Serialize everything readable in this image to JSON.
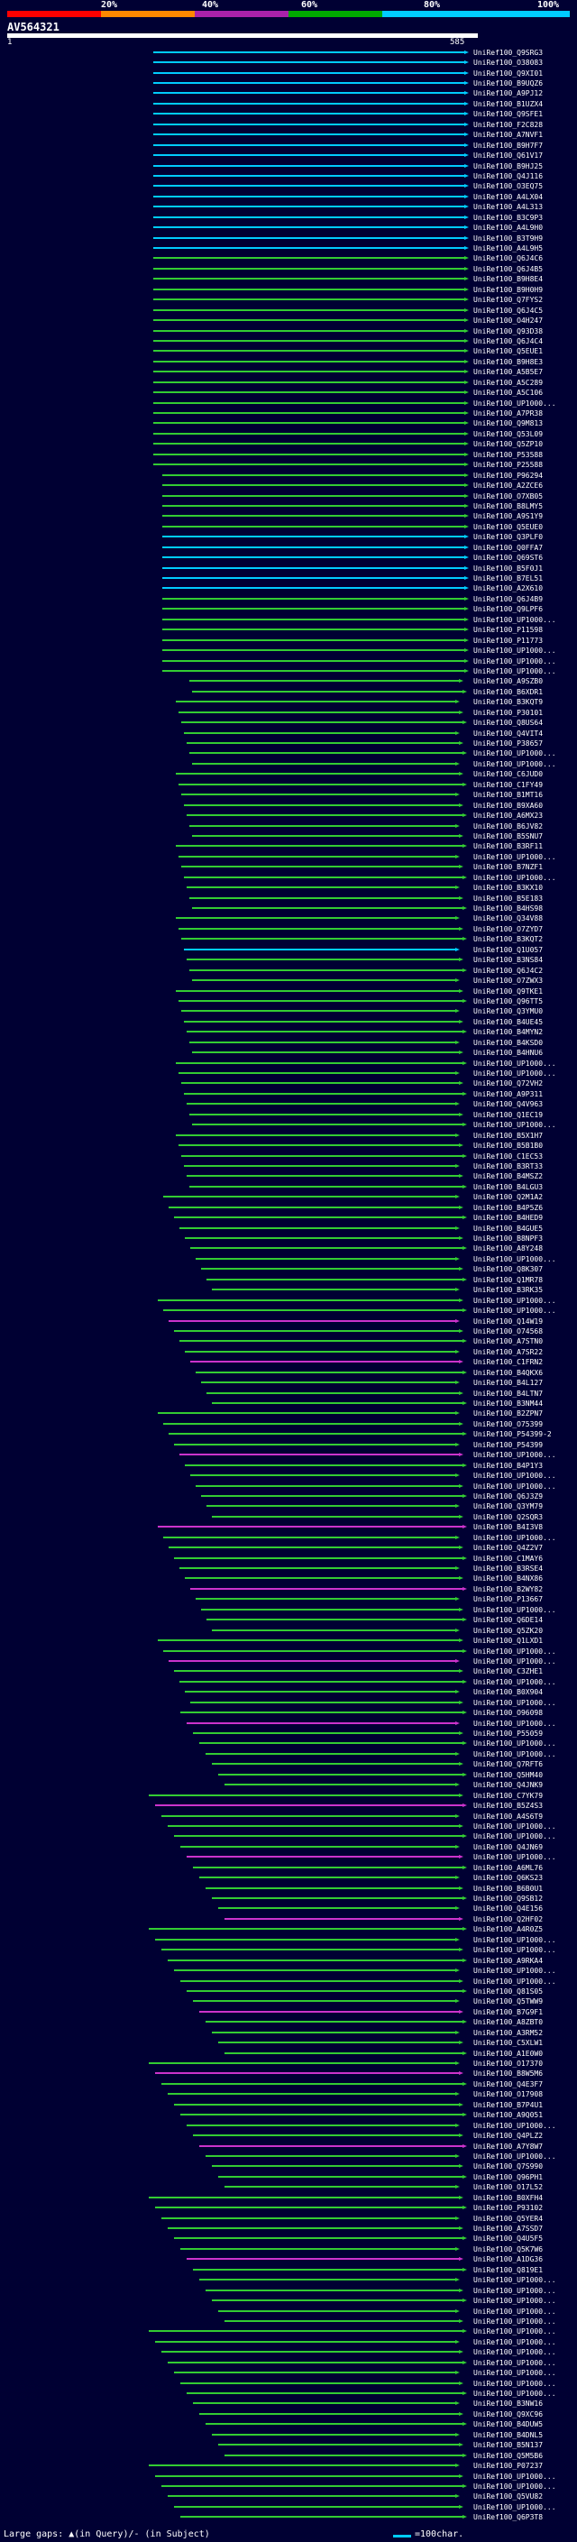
{
  "legend": {
    "labels": [
      "20%",
      "40%",
      "60%",
      "80%",
      "100%"
    ],
    "colors": [
      "#ff0000",
      "#ff8800",
      "#aa22aa",
      "#00aa00",
      "#00ccff"
    ]
  },
  "query": {
    "id": "AV564321",
    "start_label": "1",
    "end_label": "585"
  },
  "hits": [
    "UniRef100_Q9SRG3",
    "UniRef100_O38083",
    "UniRef100_Q9XI01",
    "UniRef100_B9UQZ6",
    "UniRef100_A9PJ12",
    "UniRef100_B1UZX4",
    "UniRef100_Q9SFE1",
    "UniRef100_F2C828",
    "UniRef100_A7NVF1",
    "UniRef100_B9H7F7",
    "UniRef100_Q61V17",
    "UniRef100_B9HJ25",
    "UniRef100_Q4J116",
    "UniRef100_O3EQ75",
    "UniRef100_A4LX04",
    "UniRef100_A4L313",
    "UniRef100_B3C9P3",
    "UniRef100_A4L9H0",
    "UniRef100_B3T9H9",
    "UniRef100_A4L9H5",
    "UniRef100_Q6J4C6",
    "UniRef100_Q6J4B5",
    "UniRef100_B9H8E4",
    "UniRef100_B9H0H9",
    "UniRef100_Q7FYS2",
    "UniRef100_Q6J4C5",
    "UniRef100_O4H247",
    "UniRef100_Q93D38",
    "UniRef100_Q6J4C4",
    "UniRef100_Q5EUE1",
    "UniRef100_B9H8E3",
    "UniRef100_A5B5E7",
    "UniRef100_A5C289",
    "UniRef100_A5C106",
    "UniRef100_UP1000...",
    "UniRef100_A7PR38",
    "UniRef100_Q9M813",
    "UniRef100_Q53L09",
    "UniRef100_Q5ZP10",
    "UniRef100_P53588",
    "UniRef100_P25588",
    "UniRef100_P96294",
    "UniRef100_A2ZCE6",
    "UniRef100_O7XB05",
    "UniRef100_B8LMY5",
    "UniRef100_A9S1Y9",
    "UniRef100_Q5EUE0",
    "UniRef100_Q3PLF0",
    "UniRef100_Q0FFA7",
    "UniRef100_Q69ST6",
    "UniRef100_B5F0J1",
    "UniRef100_B7EL51",
    "UniRef100_A2X610",
    "UniRef100_Q6J4B9",
    "UniRef100_Q9LPF6",
    "UniRef100_UP1000...",
    "UniRef100_P11598",
    "UniRef100_P11773",
    "UniRef100_UP1000...",
    "UniRef100_UP1000...",
    "UniRef100_UP1000...",
    "UniRef100_A9SZB0",
    "UniRef100_B6XDR1",
    "UniRef100_B3KQT9",
    "UniRef100_P30101",
    "UniRef100_Q8US64",
    "UniRef100_Q4VIT4",
    "UniRef100_P38657",
    "UniRef100_UP1000...",
    "UniRef100_UP1000...",
    "UniRef100_C6JUD0",
    "UniRef100_C1FY49",
    "UniRef100_B1MT16",
    "UniRef100_B9XA60",
    "UniRef100_A6MX23",
    "UniRef100_B6JV82",
    "UniRef100_B5SNU7",
    "UniRef100_B3RF11",
    "UniRef100_UP1000...",
    "UniRef100_B7NZF1",
    "UniRef100_UP1000...",
    "UniRef100_B3KX10",
    "UniRef100_B5E183",
    "UniRef100_B4HS98",
    "UniRef100_Q34V88",
    "UniRef100_O7ZYD7",
    "UniRef100_B3KQT2",
    "UniRef100_Q1U057",
    "UniRef100_B3NS84",
    "UniRef100_Q6J4C2",
    "UniRef100_O7ZWX3",
    "UniRef100_Q9TKE1",
    "UniRef100_Q96TT5",
    "UniRef100_Q3YMU0",
    "UniRef100_B4UE45",
    "UniRef100_B4MYN2",
    "UniRef100_B4KSD0",
    "UniRef100_B4HNU6",
    "UniRef100_UP1000...",
    "UniRef100_UP1000...",
    "UniRef100_Q72VH2",
    "UniRef100_A9P311",
    "UniRef100_Q4V963",
    "UniRef100_Q1EC19",
    "UniRef100_UP1000...",
    "UniRef100_B5X1H7",
    "UniRef100_B5B1B0",
    "UniRef100_C1EC53",
    "UniRef100_B3RT33",
    "UniRef100_B4MSZ2",
    "UniRef100_B4LGU3",
    "UniRef100_Q2M1A2",
    "UniRef100_B4P5Z6",
    "UniRef100_B4HED9",
    "UniRef100_B4GUE5",
    "UniRef100_B8NPF3",
    "UniRef100_A8Y248",
    "UniRef100_UP1000...",
    "UniRef100_Q8K307",
    "UniRef100_Q1MR78",
    "UniRef100_B3RK35",
    "UniRef100_UP1000...",
    "UniRef100_UP1000...",
    "UniRef100_Q14W19",
    "UniRef100_O74568",
    "UniRef100_A7STN0",
    "UniRef100_A7SR22",
    "UniRef100_C1FRN2",
    "UniRef100_B4QKX6",
    "UniRef100_B4L127",
    "UniRef100_B4LTN7",
    "UniRef100_B3NM44",
    "UniRef100_B2ZPN7",
    "UniRef100_O75399",
    "UniRef100_P54399-2",
    "UniRef100_P54399",
    "UniRef100_UP1000...",
    "UniRef100_B4P1Y3",
    "UniRef100_UP1000...",
    "UniRef100_UP1000...",
    "UniRef100_Q6J3Z9",
    "UniRef100_Q3YM79",
    "UniRef100_Q2SQR3",
    "UniRef100_B4I3V8",
    "UniRef100_UP1000...",
    "UniRef100_Q4Z2V7",
    "UniRef100_C1MAY6",
    "UniRef100_B3RSE4",
    "UniRef100_B4NX86",
    "UniRef100_B2WY82",
    "UniRef100_P13667",
    "UniRef100_UP1000...",
    "UniRef100_Q6DE14",
    "UniRef100_Q5ZK20",
    "UniRef100_Q1LXD1",
    "UniRef100_UP1000...",
    "UniRef100_UP1000...",
    "UniRef100_C3ZHE1",
    "UniRef100_UP1000...",
    "UniRef100_B0X904",
    "UniRef100_UP1000...",
    "UniRef100_O96098",
    "UniRef100_UP1000...",
    "UniRef100_P55059",
    "UniRef100_UP1000...",
    "UniRef100_UP1000...",
    "UniRef100_Q7RFT6",
    "UniRef100_Q5HM40",
    "UniRef100_Q4JNK9",
    "UniRef100_C7YK79",
    "UniRef100_B5Z4S3",
    "UniRef100_A4S6T9",
    "UniRef100_UP1000...",
    "UniRef100_UP1000...",
    "UniRef100_Q4JN69",
    "UniRef100_UP1000...",
    "UniRef100_A6ML76",
    "UniRef100_Q6KS23",
    "UniRef100_B6B0U1",
    "UniRef100_Q9SB12",
    "UniRef100_Q4E156",
    "UniRef100_Q2HF02",
    "UniRef100_A4R0Z5",
    "UniRef100_UP1000...",
    "UniRef100_UP1000...",
    "UniRef100_A9RKA4",
    "UniRef100_UP1000...",
    "UniRef100_UP1000...",
    "UniRef100_Q81S05",
    "UniRef100_Q5TWW9",
    "UniRef100_B7G9F1",
    "UniRef100_A8ZBT0",
    "UniRef100_A3RM52",
    "UniRef100_C5XLW1",
    "UniRef100_A1E0W0",
    "UniRef100_O17370",
    "UniRef100_B8W5M6",
    "UniRef100_Q4E3F7",
    "UniRef100_O17908",
    "UniRef100_B7P4U1",
    "UniRef100_A9Q051",
    "UniRef100_UP1000...",
    "UniRef100_Q4PLZ2",
    "UniRef100_A7Y8W7",
    "UniRef100_UP1000...",
    "UniRef100_Q7S990",
    "UniRef100_Q96PH1",
    "UniRef100_O17L52",
    "UniRef100_B0XFH4",
    "UniRef100_P93102",
    "UniRef100_Q5YER4",
    "UniRef100_A7SSD7",
    "UniRef100_Q4U5F5",
    "UniRef100_Q5K7W6",
    "UniRef100_A1DG36",
    "UniRef100_Q819E1",
    "UniRef100_UP1000...",
    "UniRef100_UP1000...",
    "UniRef100_UP1000...",
    "UniRef100_UP1000...",
    "UniRef100_UP1000...",
    "UniRef100_UP1000...",
    "UniRef100_UP1000...",
    "UniRef100_UP1000...",
    "UniRef100_UP1000...",
    "UniRef100_UP1000...",
    "UniRef100_UP1000...",
    "UniRef100_UP1000...",
    "UniRef100_B3NW16",
    "UniRef100_Q9XC96",
    "UniRef100_B4DUW5",
    "UniRef100_B4DNL5",
    "UniRef100_B5N137",
    "UniRef100_Q5M5B6",
    "UniRef100_P07237",
    "UniRef100_UP1000...",
    "UniRef100_UP1000...",
    "UniRef100_Q5VU82",
    "UniRef100_UP1000...",
    "UniRef100_Q6P3T8"
  ],
  "footer": {
    "gaps_text": "Large gaps: ▲(in Query)/- (in Subject)",
    "scale_text": "=100char."
  }
}
